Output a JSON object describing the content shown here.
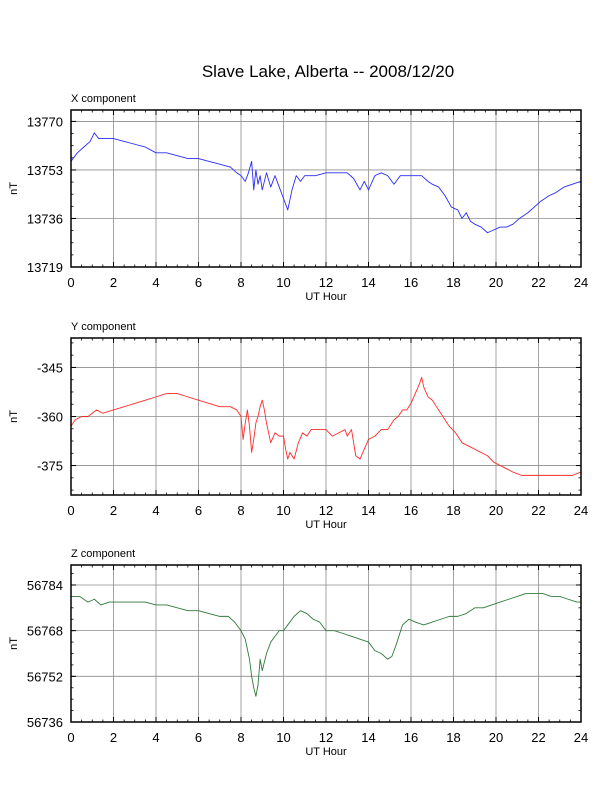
{
  "page_title": "Slave Lake, Alberta -- 2008/12/20",
  "colors": {
    "X": "#2a2aff",
    "Y": "#ff2a2a",
    "Z": "#2f7a3a",
    "grid": "#8c8c8c",
    "frame": "#000000"
  },
  "chart_data": [
    {
      "type": "line",
      "title": "X component",
      "xlabel": "UT Hour",
      "ylabel": "nT",
      "xlim": [
        0,
        24
      ],
      "ylim": [
        13719,
        13774
      ],
      "xticks": [
        0,
        2,
        4,
        6,
        8,
        10,
        12,
        14,
        16,
        18,
        20,
        22,
        24
      ],
      "yticks": [
        13719,
        13736,
        13753,
        13770
      ],
      "grid": true,
      "series": [
        {
          "color": "#2a2aff",
          "points": [
            [
              0.0,
              13756
            ],
            [
              0.3,
              13759
            ],
            [
              0.6,
              13761
            ],
            [
              0.9,
              13763
            ],
            [
              1.1,
              13766
            ],
            [
              1.3,
              13764
            ],
            [
              1.6,
              13764
            ],
            [
              2.0,
              13764
            ],
            [
              2.5,
              13763
            ],
            [
              3.0,
              13762
            ],
            [
              3.5,
              13761
            ],
            [
              4.0,
              13759
            ],
            [
              4.5,
              13759
            ],
            [
              5.0,
              13758
            ],
            [
              5.5,
              13757
            ],
            [
              6.0,
              13757
            ],
            [
              6.5,
              13756
            ],
            [
              7.0,
              13755
            ],
            [
              7.5,
              13754
            ],
            [
              7.8,
              13752
            ],
            [
              8.0,
              13751
            ],
            [
              8.2,
              13749
            ],
            [
              8.35,
              13752
            ],
            [
              8.5,
              13756
            ],
            [
              8.6,
              13746
            ],
            [
              8.7,
              13753
            ],
            [
              8.8,
              13748
            ],
            [
              8.9,
              13751
            ],
            [
              9.0,
              13746
            ],
            [
              9.2,
              13752
            ],
            [
              9.4,
              13747
            ],
            [
              9.6,
              13751
            ],
            [
              9.8,
              13747
            ],
            [
              10.0,
              13743
            ],
            [
              10.2,
              13739
            ],
            [
              10.4,
              13746
            ],
            [
              10.6,
              13751
            ],
            [
              10.8,
              13749
            ],
            [
              11.0,
              13751
            ],
            [
              11.5,
              13751
            ],
            [
              12.0,
              13752
            ],
            [
              12.5,
              13752
            ],
            [
              13.0,
              13752
            ],
            [
              13.3,
              13750
            ],
            [
              13.6,
              13746
            ],
            [
              13.8,
              13749
            ],
            [
              14.0,
              13746
            ],
            [
              14.3,
              13751
            ],
            [
              14.6,
              13752
            ],
            [
              14.9,
              13751
            ],
            [
              15.2,
              13748
            ],
            [
              15.5,
              13751
            ],
            [
              15.8,
              13751
            ],
            [
              16.2,
              13751
            ],
            [
              16.5,
              13751
            ],
            [
              16.8,
              13749
            ],
            [
              17.0,
              13748
            ],
            [
              17.3,
              13747
            ],
            [
              17.6,
              13744
            ],
            [
              17.9,
              13740
            ],
            [
              18.2,
              13739
            ],
            [
              18.4,
              13736
            ],
            [
              18.6,
              13738
            ],
            [
              18.8,
              13735
            ],
            [
              19.0,
              13734
            ],
            [
              19.3,
              13733
            ],
            [
              19.6,
              13731
            ],
            [
              19.9,
              13732
            ],
            [
              20.2,
              13733
            ],
            [
              20.5,
              13733
            ],
            [
              20.8,
              13734
            ],
            [
              21.1,
              13736
            ],
            [
              21.5,
              13738
            ],
            [
              21.8,
              13740
            ],
            [
              22.1,
              13742
            ],
            [
              22.5,
              13744
            ],
            [
              22.8,
              13745
            ],
            [
              23.2,
              13747
            ],
            [
              23.6,
              13748
            ],
            [
              24.0,
              13749
            ]
          ]
        }
      ]
    },
    {
      "type": "line",
      "title": "Y component",
      "xlabel": "UT Hour",
      "ylabel": "nT",
      "xlim": [
        0,
        24
      ],
      "ylim": [
        -384,
        -336
      ],
      "xticks": [
        0,
        2,
        4,
        6,
        8,
        10,
        12,
        14,
        16,
        18,
        20,
        22,
        24
      ],
      "yticks": [
        -345,
        -360,
        -375
      ],
      "grid": true,
      "series": [
        {
          "color": "#ff2a2a",
          "points": [
            [
              0.0,
              -363
            ],
            [
              0.2,
              -361
            ],
            [
              0.5,
              -360
            ],
            [
              0.8,
              -360
            ],
            [
              1.0,
              -359
            ],
            [
              1.2,
              -358
            ],
            [
              1.5,
              -359
            ],
            [
              2.0,
              -358
            ],
            [
              2.5,
              -357
            ],
            [
              3.0,
              -356
            ],
            [
              3.5,
              -355
            ],
            [
              4.0,
              -354
            ],
            [
              4.5,
              -353
            ],
            [
              5.0,
              -353
            ],
            [
              5.5,
              -354
            ],
            [
              6.0,
              -355
            ],
            [
              6.5,
              -356
            ],
            [
              7.0,
              -357
            ],
            [
              7.5,
              -357
            ],
            [
              7.8,
              -358
            ],
            [
              8.0,
              -360
            ],
            [
              8.1,
              -367
            ],
            [
              8.2,
              -362
            ],
            [
              8.3,
              -358
            ],
            [
              8.4,
              -363
            ],
            [
              8.5,
              -371
            ],
            [
              8.6,
              -367
            ],
            [
              8.7,
              -362
            ],
            [
              8.8,
              -360
            ],
            [
              8.9,
              -357
            ],
            [
              9.0,
              -355
            ],
            [
              9.1,
              -358
            ],
            [
              9.2,
              -362
            ],
            [
              9.4,
              -368
            ],
            [
              9.6,
              -365
            ],
            [
              9.8,
              -366
            ],
            [
              10.0,
              -366
            ],
            [
              10.1,
              -370
            ],
            [
              10.2,
              -373
            ],
            [
              10.3,
              -371
            ],
            [
              10.5,
              -373
            ],
            [
              10.7,
              -368
            ],
            [
              10.9,
              -365
            ],
            [
              11.1,
              -366
            ],
            [
              11.3,
              -364
            ],
            [
              11.6,
              -364
            ],
            [
              12.0,
              -364
            ],
            [
              12.3,
              -366
            ],
            [
              12.6,
              -365
            ],
            [
              12.9,
              -364
            ],
            [
              13.0,
              -366
            ],
            [
              13.2,
              -364
            ],
            [
              13.4,
              -372
            ],
            [
              13.6,
              -373
            ],
            [
              13.8,
              -370
            ],
            [
              14.0,
              -367
            ],
            [
              14.3,
              -366
            ],
            [
              14.6,
              -364
            ],
            [
              14.9,
              -364
            ],
            [
              15.2,
              -361
            ],
            [
              15.4,
              -360
            ],
            [
              15.6,
              -358
            ],
            [
              15.8,
              -358
            ],
            [
              16.0,
              -356
            ],
            [
              16.2,
              -353
            ],
            [
              16.4,
              -350
            ],
            [
              16.5,
              -348
            ],
            [
              16.6,
              -351
            ],
            [
              16.8,
              -354
            ],
            [
              17.0,
              -355
            ],
            [
              17.2,
              -357
            ],
            [
              17.5,
              -360
            ],
            [
              17.8,
              -363
            ],
            [
              18.1,
              -365
            ],
            [
              18.4,
              -368
            ],
            [
              18.7,
              -369
            ],
            [
              19.0,
              -370
            ],
            [
              19.3,
              -371
            ],
            [
              19.6,
              -372
            ],
            [
              19.9,
              -374
            ],
            [
              20.2,
              -375
            ],
            [
              20.5,
              -376
            ],
            [
              20.8,
              -377
            ],
            [
              21.2,
              -378
            ],
            [
              21.6,
              -378
            ],
            [
              22.0,
              -378
            ],
            [
              22.4,
              -378
            ],
            [
              22.8,
              -378
            ],
            [
              23.2,
              -378
            ],
            [
              23.6,
              -378
            ],
            [
              24.0,
              -377
            ]
          ]
        }
      ]
    },
    {
      "type": "line",
      "title": "Z component",
      "xlabel": "UT Hour",
      "ylabel": "nT",
      "xlim": [
        0,
        24
      ],
      "ylim": [
        56736,
        56791
      ],
      "xticks": [
        0,
        2,
        4,
        6,
        8,
        10,
        12,
        14,
        16,
        18,
        20,
        22,
        24
      ],
      "yticks": [
        56736,
        56752,
        56768,
        56784
      ],
      "grid": true,
      "series": [
        {
          "color": "#2f7a3a",
          "points": [
            [
              0.0,
              56780
            ],
            [
              0.4,
              56780
            ],
            [
              0.8,
              56778
            ],
            [
              1.1,
              56779
            ],
            [
              1.4,
              56777
            ],
            [
              1.8,
              56778
            ],
            [
              2.2,
              56778
            ],
            [
              2.6,
              56778
            ],
            [
              3.0,
              56778
            ],
            [
              3.5,
              56778
            ],
            [
              4.0,
              56777
            ],
            [
              4.5,
              56777
            ],
            [
              5.0,
              56776
            ],
            [
              5.5,
              56775
            ],
            [
              6.0,
              56775
            ],
            [
              6.5,
              56774
            ],
            [
              7.0,
              56773
            ],
            [
              7.4,
              56773
            ],
            [
              7.7,
              56771
            ],
            [
              8.0,
              56768
            ],
            [
              8.2,
              56765
            ],
            [
              8.4,
              56758
            ],
            [
              8.5,
              56752
            ],
            [
              8.6,
              56748
            ],
            [
              8.7,
              56745
            ],
            [
              8.8,
              56749
            ],
            [
              8.9,
              56758
            ],
            [
              9.0,
              56754
            ],
            [
              9.2,
              56760
            ],
            [
              9.4,
              56764
            ],
            [
              9.6,
              56766
            ],
            [
              9.8,
              56768
            ],
            [
              10.0,
              56768
            ],
            [
              10.2,
              56770
            ],
            [
              10.5,
              56773
            ],
            [
              10.8,
              56775
            ],
            [
              11.1,
              56774
            ],
            [
              11.4,
              56772
            ],
            [
              11.7,
              56771
            ],
            [
              12.0,
              56768
            ],
            [
              12.4,
              56768
            ],
            [
              12.8,
              56767
            ],
            [
              13.2,
              56766
            ],
            [
              13.6,
              56765
            ],
            [
              14.0,
              56764
            ],
            [
              14.3,
              56761
            ],
            [
              14.6,
              56760
            ],
            [
              14.9,
              56758
            ],
            [
              15.1,
              56759
            ],
            [
              15.3,
              56763
            ],
            [
              15.6,
              56770
            ],
            [
              15.9,
              56772
            ],
            [
              16.2,
              56771
            ],
            [
              16.6,
              56770
            ],
            [
              17.0,
              56771
            ],
            [
              17.4,
              56772
            ],
            [
              17.8,
              56773
            ],
            [
              18.2,
              56773
            ],
            [
              18.6,
              56774
            ],
            [
              19.0,
              56776
            ],
            [
              19.4,
              56776
            ],
            [
              19.8,
              56777
            ],
            [
              20.2,
              56778
            ],
            [
              20.6,
              56779
            ],
            [
              21.0,
              56780
            ],
            [
              21.4,
              56781
            ],
            [
              21.8,
              56781
            ],
            [
              22.2,
              56781
            ],
            [
              22.6,
              56780
            ],
            [
              23.0,
              56780
            ],
            [
              23.4,
              56779
            ],
            [
              23.8,
              56778
            ],
            [
              24.0,
              56778
            ]
          ]
        }
      ]
    }
  ]
}
